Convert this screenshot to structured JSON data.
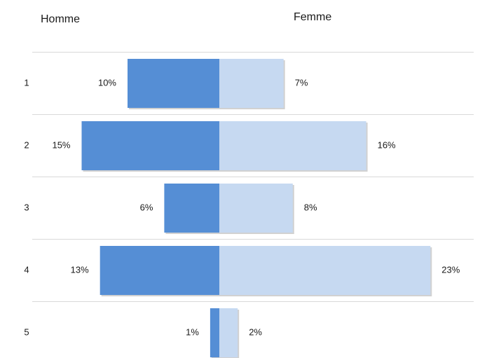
{
  "chart_data": {
    "type": "bar",
    "orientation": "horizontal",
    "layout": "diverging",
    "categories": [
      "1",
      "2",
      "3",
      "4",
      "5"
    ],
    "series": [
      {
        "name": "Homme",
        "values": [
          10,
          15,
          6,
          13,
          1
        ],
        "labels": [
          "10%",
          "15%",
          "6%",
          "13%",
          "1%"
        ],
        "color": "#558ED5",
        "side": "left"
      },
      {
        "name": "Femme",
        "values": [
          7,
          16,
          8,
          23,
          2
        ],
        "labels": [
          "7%",
          "16%",
          "8%",
          "23%",
          "2%"
        ],
        "color": "#C6D9F1",
        "side": "right"
      }
    ],
    "unit": "%",
    "grid": true,
    "legend_placement": "top",
    "gridline_color": "#D9D9D9"
  }
}
